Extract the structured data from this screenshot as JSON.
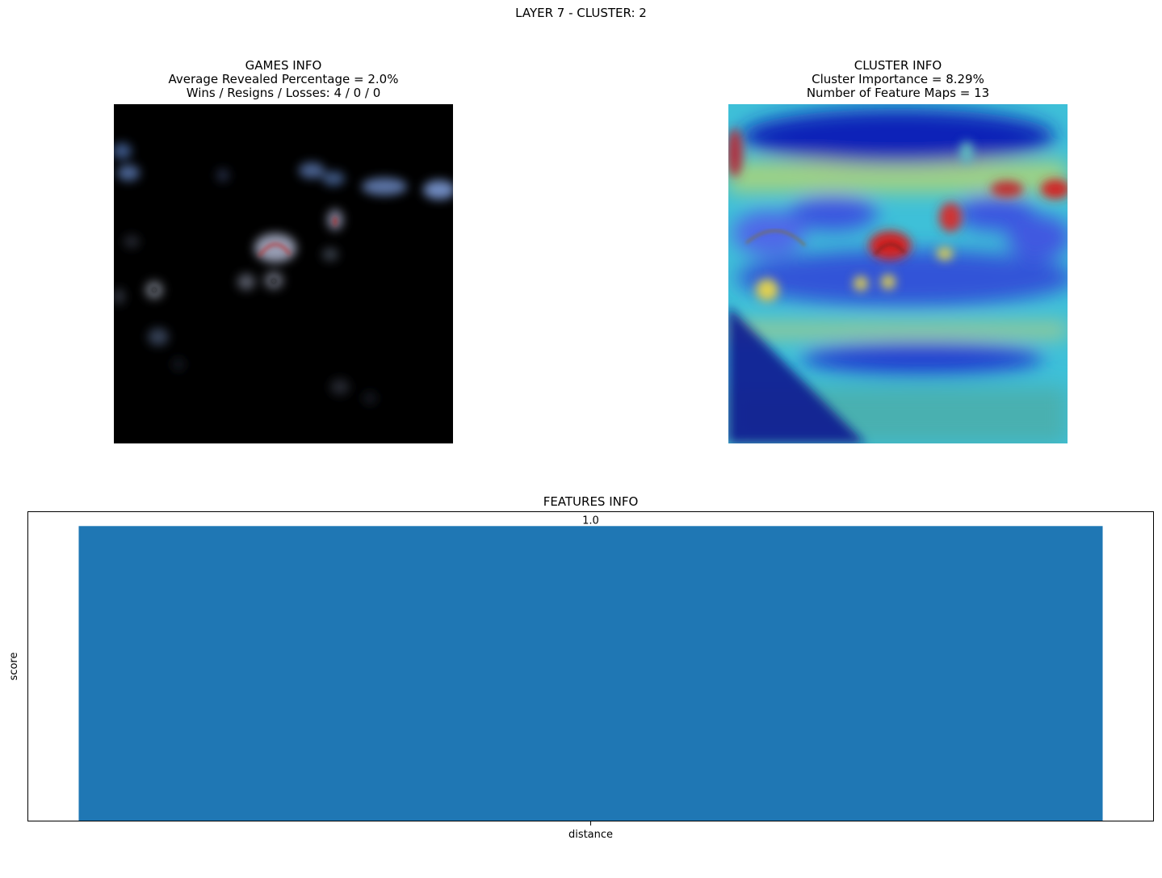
{
  "figure": {
    "suptitle": "LAYER 7 - CLUSTER: 2"
  },
  "games_info": {
    "title": "GAMES INFO",
    "line1": "Average Revealed Percentage = 2.0%",
    "line2": "Wins / Resigns / Losses: 4 / 0 / 0"
  },
  "cluster_info": {
    "title": "CLUSTER INFO",
    "line1": "Cluster Importance = 8.29%",
    "line2": "Number of Feature Maps = 13"
  },
  "chart_data": {
    "type": "bar",
    "title": "FEATURES INFO",
    "categories": [
      "distance"
    ],
    "values": [
      1.0
    ],
    "value_labels": [
      "1.0"
    ],
    "xlabel": "",
    "ylabel": "score",
    "ylim": [
      0,
      1.05
    ],
    "bar_color": "#1f77b4",
    "grid": false,
    "y_ticks_shown": false
  }
}
